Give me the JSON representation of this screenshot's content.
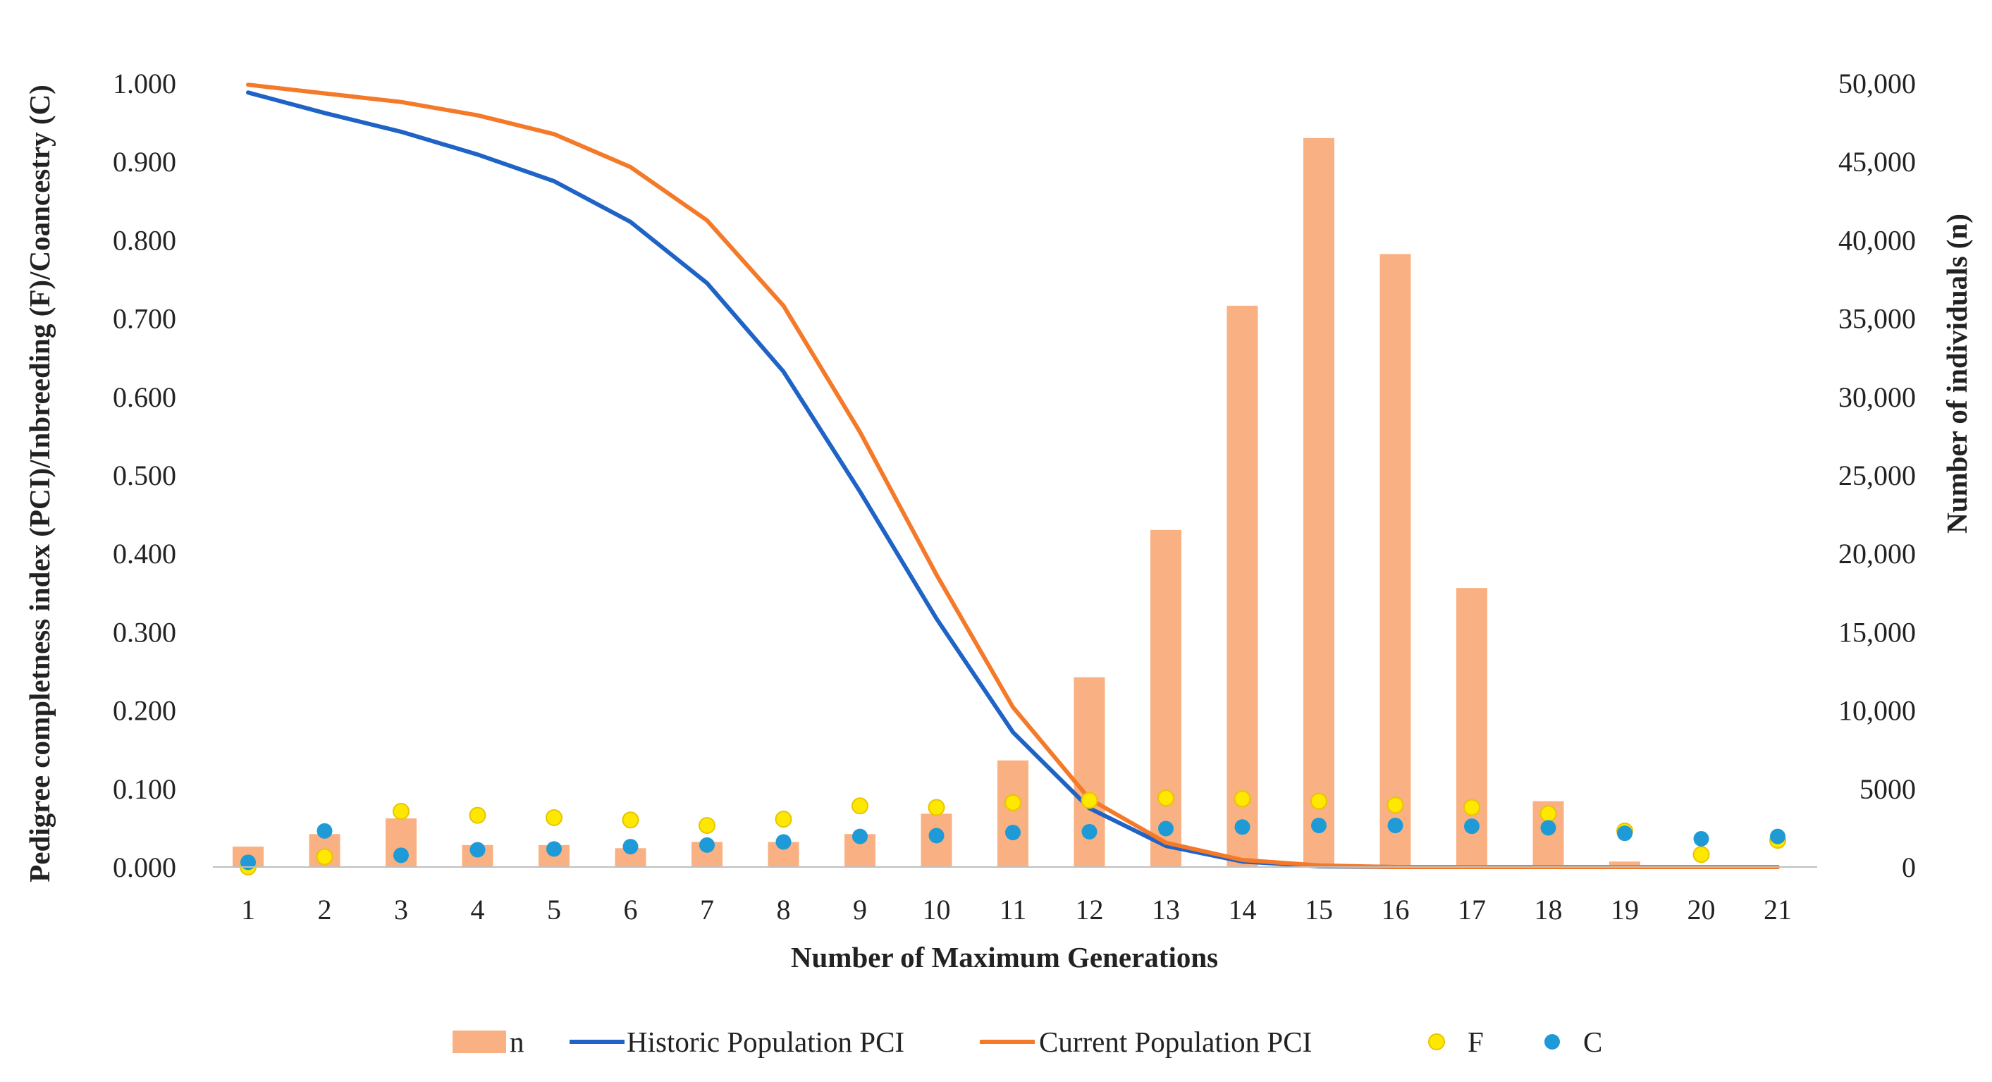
{
  "chart_data": {
    "type": "bar+line+scatter",
    "xlabel": "Number of Maximum Generations",
    "ylabel_left": "Pedigree completness index (PCI)/Inbreeding (F)/Coancestry (C)",
    "ylabel_right": "Number of individuals (n)",
    "categories": [
      "1",
      "2",
      "3",
      "4",
      "5",
      "6",
      "7",
      "8",
      "9",
      "10",
      "11",
      "12",
      "13",
      "14",
      "15",
      "16",
      "17",
      "18",
      "19",
      "20",
      "21"
    ],
    "ylim_left": [
      0,
      1
    ],
    "ylim_right": [
      0,
      50000
    ],
    "yticks_left": [
      "0.000",
      "0.100",
      "0.200",
      "0.300",
      "0.400",
      "0.500",
      "0.600",
      "0.700",
      "0.800",
      "0.900",
      "1.000"
    ],
    "yticks_right": [
      "0",
      "5000",
      "10,000",
      "15,000",
      "20,000",
      "25,000",
      "30,000",
      "35,000",
      "40,000",
      "45,000",
      "50,000"
    ],
    "series": [
      {
        "name": "n",
        "kind": "bar",
        "axis": "right",
        "color": "#F9B183",
        "values": [
          1300,
          2100,
          3100,
          1400,
          1400,
          1200,
          1600,
          1600,
          2100,
          3400,
          6800,
          12100,
          21500,
          35800,
          46500,
          39100,
          17800,
          4200,
          350,
          40,
          20
        ]
      },
      {
        "name": "Historic Population PCI",
        "kind": "line",
        "axis": "left",
        "color": "#1F63C6",
        "values": [
          0.988,
          0.962,
          0.938,
          0.909,
          0.875,
          0.823,
          0.745,
          0.632,
          0.479,
          0.317,
          0.172,
          0.075,
          0.027,
          0.007,
          0.001,
          0.0,
          0.0,
          0.0,
          0.0,
          0.0,
          0.0
        ]
      },
      {
        "name": "Current Population PCI",
        "kind": "line",
        "axis": "left",
        "color": "#F47A2A",
        "values": [
          0.998,
          0.987,
          0.976,
          0.959,
          0.935,
          0.893,
          0.825,
          0.716,
          0.555,
          0.373,
          0.204,
          0.087,
          0.031,
          0.009,
          0.002,
          0.0,
          0.0,
          0.0,
          0.0,
          0.0,
          0.0
        ]
      },
      {
        "name": "F",
        "kind": "scatter",
        "axis": "left",
        "color": "#FFE800",
        "stroke": "#E8C400",
        "values": [
          0.0,
          0.013,
          0.071,
          0.066,
          0.063,
          0.06,
          0.053,
          0.061,
          0.078,
          0.076,
          0.082,
          0.085,
          0.088,
          0.087,
          0.084,
          0.079,
          0.076,
          0.068,
          0.046,
          0.016,
          0.034
        ]
      },
      {
        "name": "C",
        "kind": "scatter",
        "axis": "left",
        "color": "#1E9AD6",
        "values": [
          0.006,
          0.046,
          0.015,
          0.022,
          0.023,
          0.026,
          0.028,
          0.032,
          0.039,
          0.04,
          0.044,
          0.045,
          0.049,
          0.051,
          0.053,
          0.053,
          0.052,
          0.05,
          0.043,
          0.036,
          0.039
        ]
      }
    ],
    "legend": {
      "placement": "bottom-center",
      "items": [
        {
          "label": "n",
          "symbol": "bar"
        },
        {
          "label": "Historic Population PCI",
          "symbol": "line"
        },
        {
          "label": "Current Population PCI",
          "symbol": "line"
        },
        {
          "label": "F",
          "symbol": "marker"
        },
        {
          "label": "C",
          "symbol": "marker"
        }
      ]
    },
    "grid": false
  }
}
